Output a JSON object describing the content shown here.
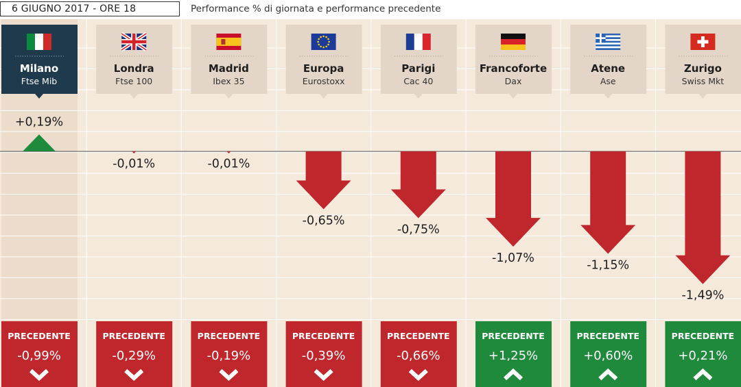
{
  "header": {
    "date_label": "6 GIUGNO 2017 - ORE 18",
    "subtitle": "Performance % di giornata e performance precedente"
  },
  "colors": {
    "background": "#f5e9dc",
    "header_box": "#e3d6c8",
    "highlight_column": "#ecdccb",
    "highlight_header": "#1f3a4d",
    "down": "#c0272d",
    "up": "#1f8a3c"
  },
  "chart_data": {
    "type": "bar",
    "title": "Performance % di giornata e performance precedente",
    "categories": [
      "Milano",
      "Londra",
      "Madrid",
      "Europa",
      "Parigi",
      "Francoforte",
      "Atene",
      "Zurigo"
    ],
    "indices": [
      "Ftse Mib",
      "Ftse 100",
      "Ibex 35",
      "Eurostoxx",
      "Cac 40",
      "Dax",
      "Ase",
      "Swiss Mkt"
    ],
    "flags": [
      "italy-flag",
      "uk-flag",
      "spain-flag",
      "eu-flag",
      "france-flag",
      "germany-flag",
      "greece-flag",
      "switzerland-flag"
    ],
    "highlighted": "Milano",
    "series": [
      {
        "values": [
          0.19,
          -0.01,
          -0.01,
          -0.65,
          -0.75,
          -1.07,
          -1.15,
          -1.49
        ],
        "labels": [
          "+0,19%",
          "-0,01%",
          "-0,01%",
          "-0,65%",
          "-0,75%",
          "-1,07%",
          "-1,15%",
          "-1,49%"
        ]
      },
      {
        "name": "PRECEDENTE",
        "values": [
          -0.99,
          -0.29,
          -0.19,
          -0.39,
          -0.66,
          1.25,
          0.6,
          0.21
        ],
        "labels": [
          "-0,99%",
          "-0,29%",
          "-0,19%",
          "-0,39%",
          "-0,66%",
          "+1,25%",
          "+0,60%",
          "+0,21%"
        ]
      }
    ]
  }
}
